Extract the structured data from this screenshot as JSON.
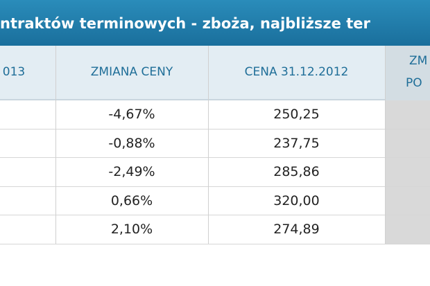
{
  "title": "ntraktów terminowych - zboża, najbliższe ter",
  "table": {
    "header": [
      "013",
      "ZMIANA CENY",
      "CENA 31.12.2012",
      [
        "ZM",
        "PO"
      ]
    ],
    "rows": [
      {
        "change": "-4,67%",
        "price": "250,25"
      },
      {
        "change": "-0,88%",
        "price": "237,75"
      },
      {
        "change": "-2,49%",
        "price": "285,86"
      },
      {
        "change": "0,66%",
        "price": "320,00"
      },
      {
        "change": "2,10%",
        "price": "274,89"
      }
    ]
  }
}
